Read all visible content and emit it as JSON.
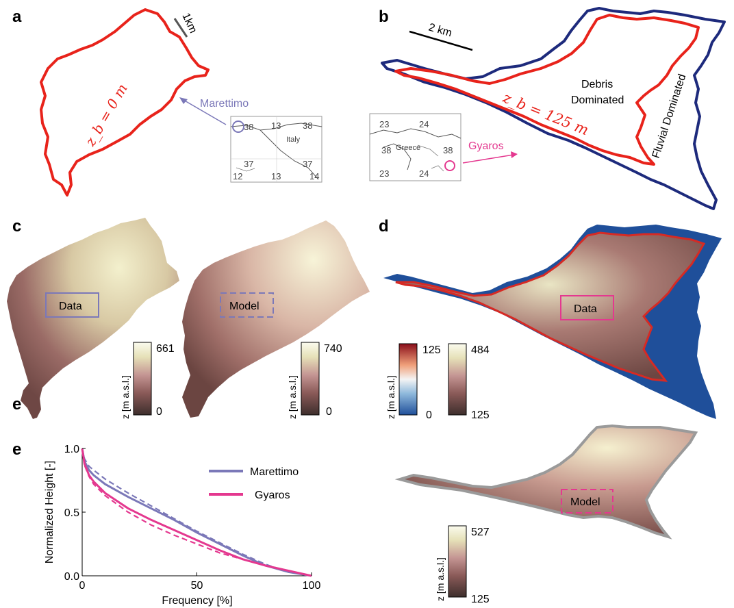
{
  "panel_labels": {
    "a": "a",
    "b": "b",
    "c": "c",
    "d": "d",
    "e": "e",
    "e_dup": "e"
  },
  "panel_a": {
    "scale_bar": "1km",
    "contour_label": "z_b = 0 m",
    "island_name": "Marettimo",
    "inset": {
      "country": "Italy",
      "lat_top_left": "38",
      "lon_top_mid": "13",
      "lat_top_right": "38",
      "lat_bottom_left": "37",
      "lat_bottom_right": "37",
      "lon_bottom_left": "12",
      "lon_bottom_mid": "13",
      "lon_bottom_right": "14"
    },
    "colors": {
      "contour": "#e8231b",
      "arrow": "#7b78b8"
    }
  },
  "panel_b": {
    "scale_bar": "2 km",
    "contour_label": "z_b = 125 m",
    "region_debris": "Debris Dominated",
    "region_fluvial": "Fluvial Dominated",
    "island_name": "Gyaros",
    "inset": {
      "country": "Greece",
      "lon_top_left": "23",
      "lon_top_mid": "24",
      "lat_left": "38",
      "lat_right": "38",
      "lon_bottom_left": "23",
      "lon_bottom_mid": "24"
    },
    "colors": {
      "inner": "#e8231b",
      "outer": "#1d2a7c",
      "arrow": "#e4388f"
    }
  },
  "panel_c": {
    "data_box": "Data",
    "model_box": "Model",
    "colorbar1": {
      "label": "z [m a.s.l.]",
      "max": "661",
      "min": "0"
    },
    "colorbar2": {
      "label": "z [m a.s.l.]",
      "max": "740",
      "min": "0"
    }
  },
  "panel_d": {
    "data_box": "Data",
    "model_box": "Model",
    "colorbar_blue_red": {
      "label": "z [m a.s.l.]",
      "max": "125",
      "min": "0"
    },
    "colorbar_terrain": {
      "max": "484",
      "min": "125"
    },
    "colorbar_model": {
      "label": "z [m a.s.l.]",
      "max": "527",
      "min": "125"
    }
  },
  "chart_data": {
    "type": "line",
    "xlabel": "Frequency [%]",
    "ylabel": "Normalized Height [-]",
    "xlim": [
      0,
      100
    ],
    "ylim": [
      0,
      1
    ],
    "xticks": [
      "0",
      "50",
      "100"
    ],
    "yticks": [
      "0.0",
      "0.5",
      "1.0"
    ],
    "legend_position": "top-right",
    "series": [
      {
        "name": "Marettimo",
        "color": "#7b78b8",
        "style": "solid",
        "x": [
          0,
          1,
          3,
          5,
          10,
          20,
          30,
          40,
          50,
          60,
          70,
          80,
          90,
          100
        ],
        "y": [
          1.0,
          0.9,
          0.83,
          0.79,
          0.72,
          0.62,
          0.53,
          0.44,
          0.34,
          0.25,
          0.16,
          0.08,
          0.03,
          0.0
        ]
      },
      {
        "name": "Marettimo model",
        "color": "#7b78b8",
        "style": "dashed",
        "x": [
          0,
          1,
          3,
          5,
          10,
          20,
          30,
          40,
          50,
          60,
          70,
          80,
          90,
          100
        ],
        "y": [
          1.0,
          0.92,
          0.86,
          0.83,
          0.76,
          0.65,
          0.55,
          0.45,
          0.35,
          0.26,
          0.17,
          0.09,
          0.03,
          0.0
        ]
      },
      {
        "name": "Gyaros",
        "color": "#e4388f",
        "style": "solid",
        "x": [
          0,
          1,
          3,
          5,
          10,
          20,
          30,
          40,
          50,
          60,
          70,
          80,
          90,
          100
        ],
        "y": [
          1.0,
          0.88,
          0.79,
          0.74,
          0.65,
          0.53,
          0.44,
          0.36,
          0.28,
          0.2,
          0.13,
          0.08,
          0.04,
          0.0
        ]
      },
      {
        "name": "Gyaros model",
        "color": "#e4388f",
        "style": "dashed",
        "x": [
          0,
          1,
          3,
          5,
          10,
          20,
          30,
          40,
          50,
          60,
          70,
          80,
          90,
          100
        ],
        "y": [
          1.0,
          0.87,
          0.78,
          0.72,
          0.63,
          0.5,
          0.4,
          0.32,
          0.25,
          0.18,
          0.13,
          0.08,
          0.04,
          0.0
        ]
      }
    ]
  }
}
